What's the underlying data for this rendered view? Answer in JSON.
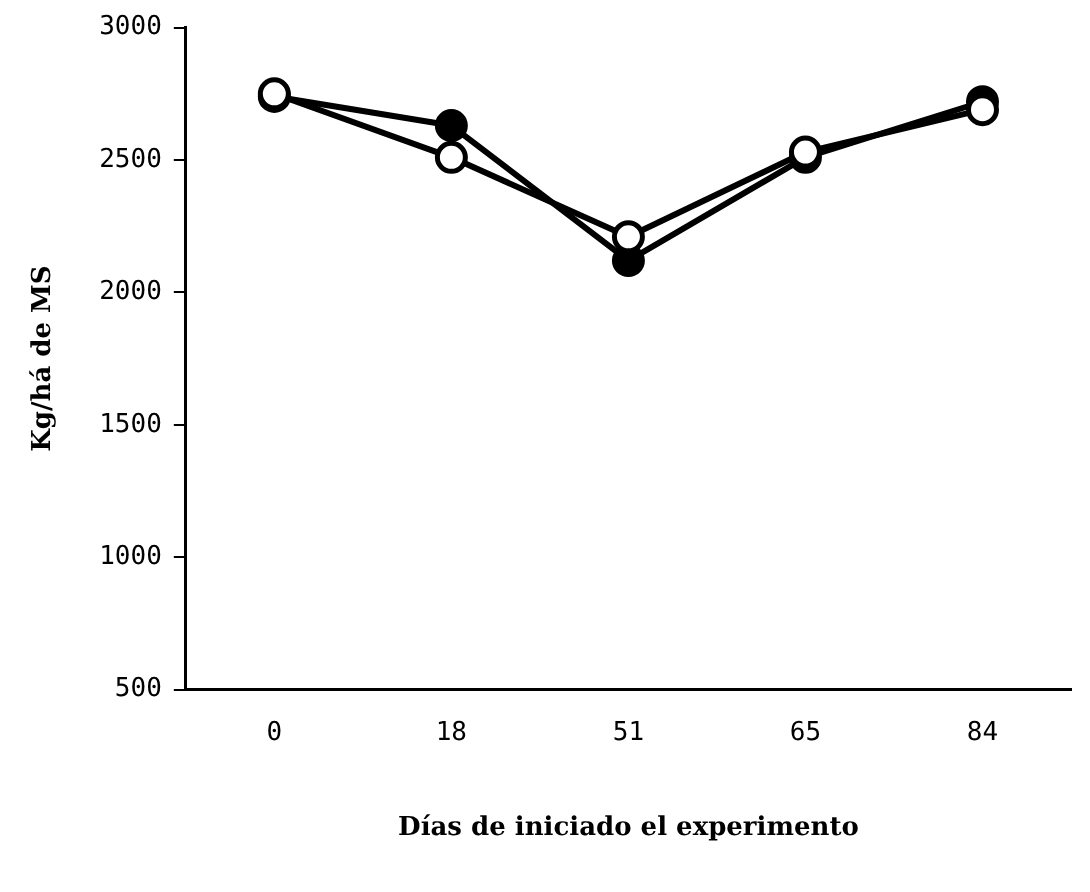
{
  "chart_data": {
    "type": "line",
    "xlabel": "Días de iniciado el experimento",
    "ylabel": "Kg/há de MS",
    "categories": [
      "0",
      "18",
      "51",
      "65",
      "84"
    ],
    "series": [
      {
        "color": "#000000",
        "values": [
          2740,
          2630,
          2120,
          2510,
          2720
        ]
      },
      {
        "color": "#ffffff",
        "values": [
          2750,
          2510,
          2210,
          2530,
          2690
        ]
      }
    ],
    "ylim": [
      500,
      3000
    ],
    "yticks": [
      500,
      1000,
      1500,
      2000,
      2500,
      3000
    ],
    "grid": false,
    "legend": false,
    "marker": "circle",
    "line_style": "solid"
  }
}
